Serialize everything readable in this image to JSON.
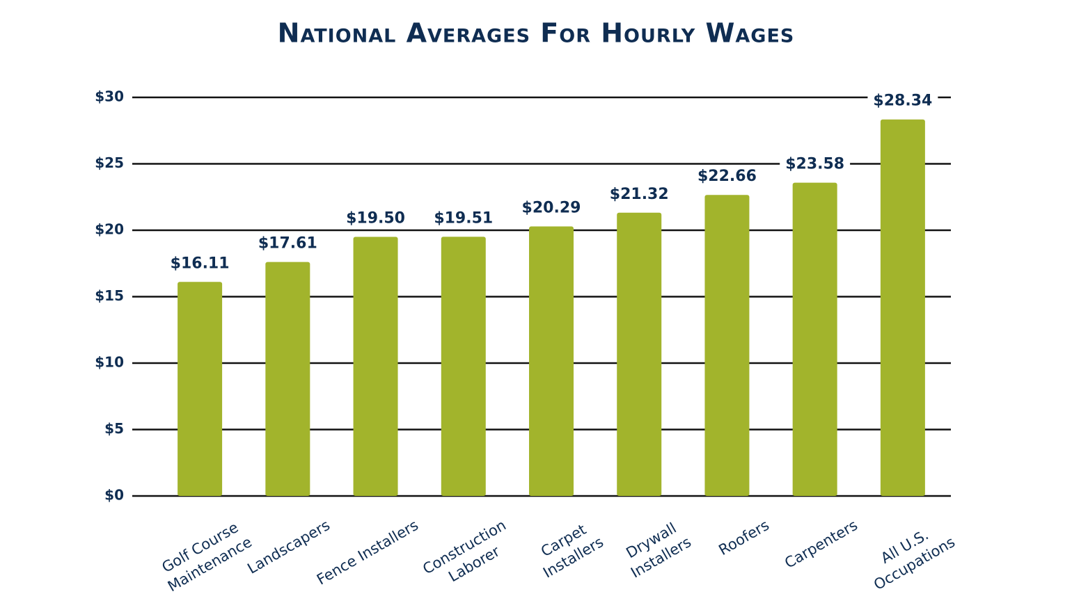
{
  "chart_data": {
    "type": "bar",
    "title": "National Averages For Hourly Wages",
    "categories": [
      "Golf Course\nMaintenance",
      "Landscapers",
      "Fence Installers",
      "Construction\nLaborer",
      "Carpet\nInstallers",
      "Drywall\nInstallers",
      "Roofers",
      "Carpenters",
      "All U.S.\nOccupations"
    ],
    "values": [
      16.11,
      17.61,
      19.5,
      19.51,
      20.29,
      21.32,
      22.66,
      23.58,
      28.34
    ],
    "value_labels": [
      "$16.11",
      "$17.61",
      "$19.50",
      "$19.51",
      "$20.29",
      "$21.32",
      "$22.66",
      "$23.58",
      "$28.34"
    ],
    "color": "#a2b42c",
    "ylim": [
      0,
      30
    ],
    "yticks": [
      {
        "value": 0,
        "label": "$0"
      },
      {
        "value": 5,
        "label": "$5"
      },
      {
        "value": 10,
        "label": "$10"
      },
      {
        "value": 15,
        "label": "$15"
      },
      {
        "value": 20,
        "label": "$20"
      },
      {
        "value": 25,
        "label": "$25"
      },
      {
        "value": 30,
        "label": "$30"
      }
    ],
    "grid": true
  }
}
